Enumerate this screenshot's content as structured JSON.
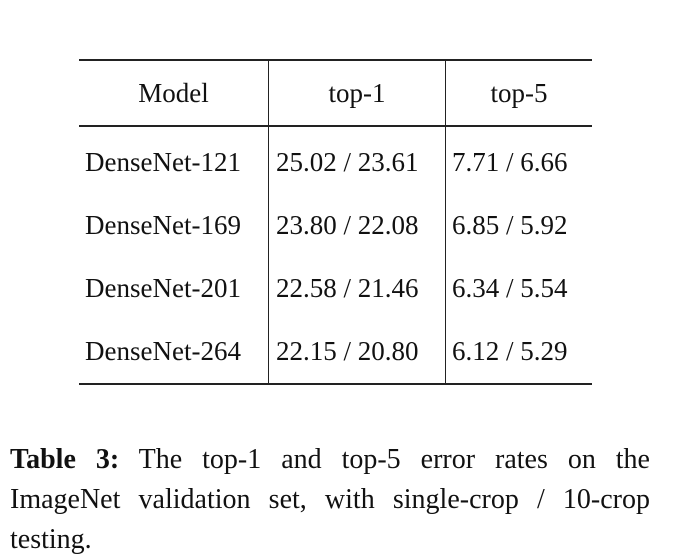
{
  "table": {
    "headers": [
      "Model",
      "top-1",
      "top-5"
    ],
    "rows": [
      [
        "DenseNet-121",
        "25.02 / 23.61",
        "7.71 / 6.66"
      ],
      [
        "DenseNet-169",
        "23.80 / 22.08",
        "6.85 / 5.92"
      ],
      [
        "DenseNet-201",
        "22.58 / 21.46",
        "6.34 / 5.54"
      ],
      [
        "DenseNet-264",
        "22.15 / 20.80",
        "6.12 / 5.29"
      ]
    ]
  },
  "caption": {
    "label": "Table 3:",
    "text": "The top-1 and top-5 error rates on the ImageNet validation set, with single-crop / 10-crop testing."
  }
}
